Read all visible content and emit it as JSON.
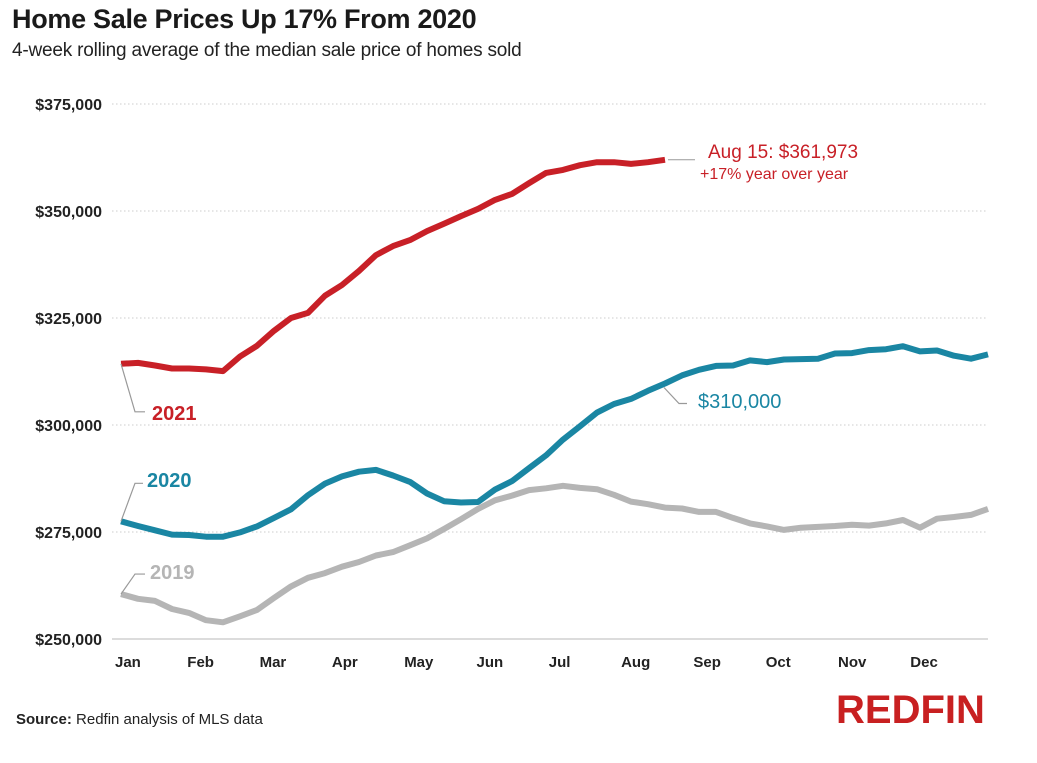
{
  "header": {
    "title": "Home Sale Prices Up 17% From 2020",
    "subtitle": "4-week rolling average of the median sale price of homes sold"
  },
  "footer": {
    "source_label": "Source:",
    "source_text": " Redfin analysis of MLS data",
    "logo": "REDFIN"
  },
  "colors": {
    "series_2021": "#c82027",
    "series_2020": "#1a86a3",
    "series_2019": "#b5b5b5",
    "annotation_2021": "#c82027",
    "annotation_2020": "#1a86a3",
    "annotation_2019": "#b5b5b5",
    "gridline": "#cccccc",
    "leader_line": "#999999",
    "logo": "#c82021"
  },
  "chart_data": {
    "type": "line",
    "title": "Home Sale Prices Up 17% From 2020",
    "subtitle": "4-week rolling average of the median sale price of homes sold",
    "xlabel": "",
    "ylabel": "",
    "x_ticks": [
      "Jan",
      "Feb",
      "Mar",
      "Apr",
      "May",
      "Jun",
      "Jul",
      "Aug",
      "Sep",
      "Oct",
      "Nov",
      "Dec"
    ],
    "x_range_weeks": [
      0,
      51
    ],
    "y_ticks": [
      250000,
      275000,
      300000,
      325000,
      350000,
      375000
    ],
    "y_tick_labels": [
      "$250,000",
      "$275,000",
      "$300,000",
      "$325,000",
      "$350,000",
      "$375,000"
    ],
    "ylim": [
      250000,
      375000
    ],
    "grid": "horizontal dotted",
    "series": [
      {
        "name": "2021",
        "label": "2021",
        "values": [
          314300,
          314500,
          313900,
          313200,
          313200,
          313000,
          312600,
          316000,
          318500,
          322000,
          325000,
          326200,
          330200,
          332700,
          336000,
          339700,
          341800,
          343200,
          345300,
          347000,
          348800,
          350500,
          352600,
          354000,
          356500,
          358900,
          359600,
          360700,
          361400,
          361400,
          361000,
          361400,
          361973
        ]
      },
      {
        "name": "2020",
        "label": "2020",
        "values": [
          277500,
          276400,
          275400,
          274400,
          274300,
          273900,
          273900,
          274900,
          276300,
          278300,
          280300,
          283600,
          286300,
          288000,
          289100,
          289500,
          288200,
          286700,
          284000,
          282200,
          281900,
          282000,
          284900,
          286900,
          289900,
          292900,
          296600,
          299700,
          302900,
          304900,
          306100,
          308000,
          309700,
          311600,
          312900,
          313800,
          313900,
          315100,
          314700,
          315300,
          315400,
          315500,
          316700,
          316800,
          317500,
          317700,
          318400,
          317200,
          317400,
          316200,
          315500,
          316500
        ]
      },
      {
        "name": "2019",
        "label": "2019",
        "values": [
          260500,
          259400,
          258900,
          257000,
          256100,
          254400,
          253900,
          255300,
          256800,
          259600,
          262300,
          264300,
          265400,
          266900,
          268000,
          269500,
          270300,
          271900,
          273500,
          275700,
          278000,
          280400,
          282400,
          283500,
          284800,
          285200,
          285800,
          285300,
          285000,
          283700,
          282100,
          281500,
          280700,
          280500,
          279700,
          279700,
          278300,
          277000,
          276300,
          275500,
          276000,
          276200,
          276400,
          276700,
          276500,
          277000,
          277800,
          276000,
          278100,
          278500,
          279000,
          280400
        ]
      }
    ],
    "annotations": [
      {
        "series": "2021",
        "text_line1": "Aug 15: $361,973",
        "text_line2": "+17% year over year"
      },
      {
        "series": "2020",
        "text": "$310,000"
      }
    ],
    "legend": "inline labels at series start (left)"
  }
}
